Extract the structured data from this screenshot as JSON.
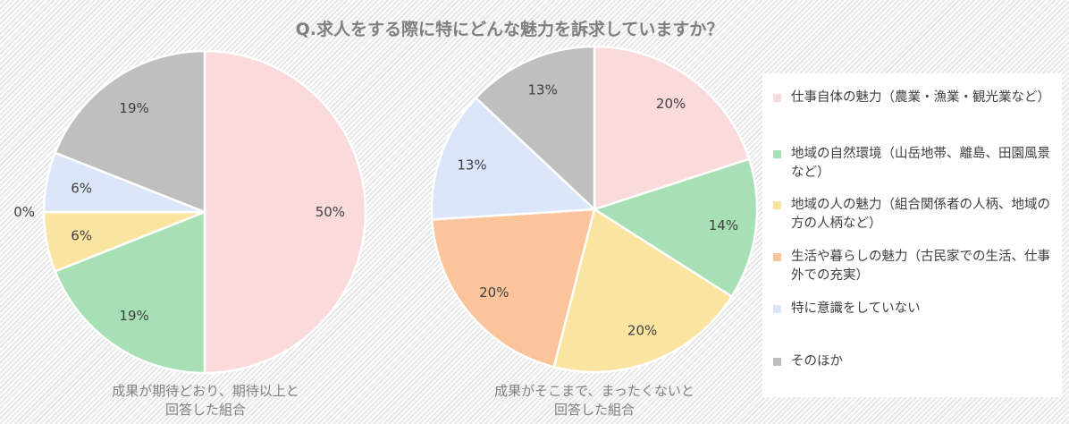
{
  "title": "Q.求人をする際に特にどんな魅力を訴求していますか？",
  "colors": [
    "#fadadb",
    "#a8e0b6",
    "#fbe3a0",
    "#fcc49a",
    "#dbe6fa",
    "#bfbfbf"
  ],
  "chart_data": {
    "type": "pie",
    "legend_position": "right",
    "categories": [
      "仕事自体の魅力（農業・漁業・観光業など）",
      "地域の自然環境（山岳地帯、離島、田園風景など）",
      "地域の人の魅力（組合関係者の人柄、地域の方の人柄など）",
      "生活や暮らしの魅力（古民家での生活、仕事外での充実）",
      "特に意識をしていない",
      "そのほか"
    ],
    "charts": [
      {
        "caption_line1": "成果が期待どおり、期待以上と",
        "caption_line2": "回答した組合",
        "values": [
          50,
          19,
          6,
          0,
          6,
          19
        ],
        "labels": [
          "50%",
          "19%",
          "6%",
          "0%",
          "6%",
          "19%"
        ]
      },
      {
        "caption_line1": "成果がそこまで、まったくないと",
        "caption_line2": "回答した組合",
        "values": [
          20,
          14,
          20,
          20,
          13,
          13
        ],
        "labels": [
          "20%",
          "14%",
          "20%",
          "20%",
          "13%",
          "13%"
        ]
      }
    ]
  }
}
